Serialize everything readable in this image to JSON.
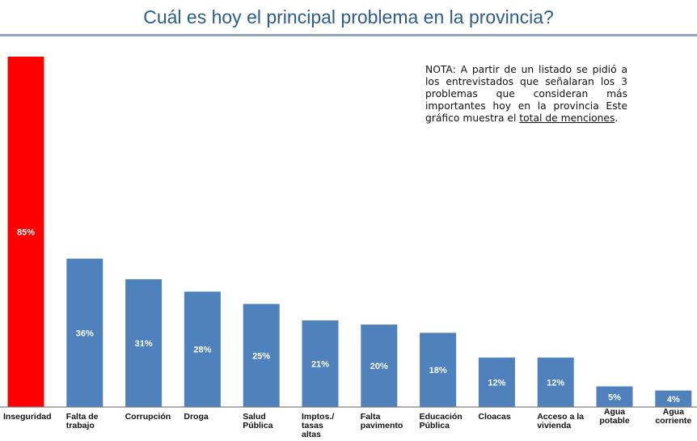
{
  "title": "Cuál es hoy el principal problema en la provincia?",
  "note": {
    "text": "NOTA: A partir de un listado se pidió a los entrevistados que señalaran los 3 problemas que consideran más importantes hoy en la provincia Este gráfico muestra el ",
    "underlined": "total de menciones",
    "end": "."
  },
  "colors": {
    "highlight": "#ff0000",
    "bar": "#4f81bd",
    "title": "#2e5c8a"
  },
  "chart_data": {
    "type": "bar",
    "title": "Cuál es hoy el principal problema en la provincia?",
    "categories": [
      [
        "Inseguridad"
      ],
      [
        "Falta de",
        "trabajo"
      ],
      [
        "Corrupción"
      ],
      [
        "Droga"
      ],
      [
        "Salud",
        "Pública"
      ],
      [
        "Imptos./",
        "tasas",
        "altas"
      ],
      [
        "Falta",
        "pavimento"
      ],
      [
        "Educación",
        "Pública"
      ],
      [
        "Cloacas"
      ],
      [
        "Acceso a la",
        "vivienda"
      ],
      [
        "Agua",
        "potable"
      ],
      [
        "Agua",
        "corriente"
      ]
    ],
    "values": [
      85,
      36,
      31,
      28,
      25,
      21,
      20,
      18,
      12,
      12,
      5,
      4
    ],
    "labels": [
      "85%",
      "36%",
      "31%",
      "28%",
      "25%",
      "21%",
      "20%",
      "18%",
      "12%",
      "12%",
      "5%",
      "4%"
    ],
    "highlight_index": 0,
    "xlabel": "",
    "ylabel": "",
    "ylim": [
      0,
      85
    ],
    "grid": false,
    "legend": "none"
  }
}
